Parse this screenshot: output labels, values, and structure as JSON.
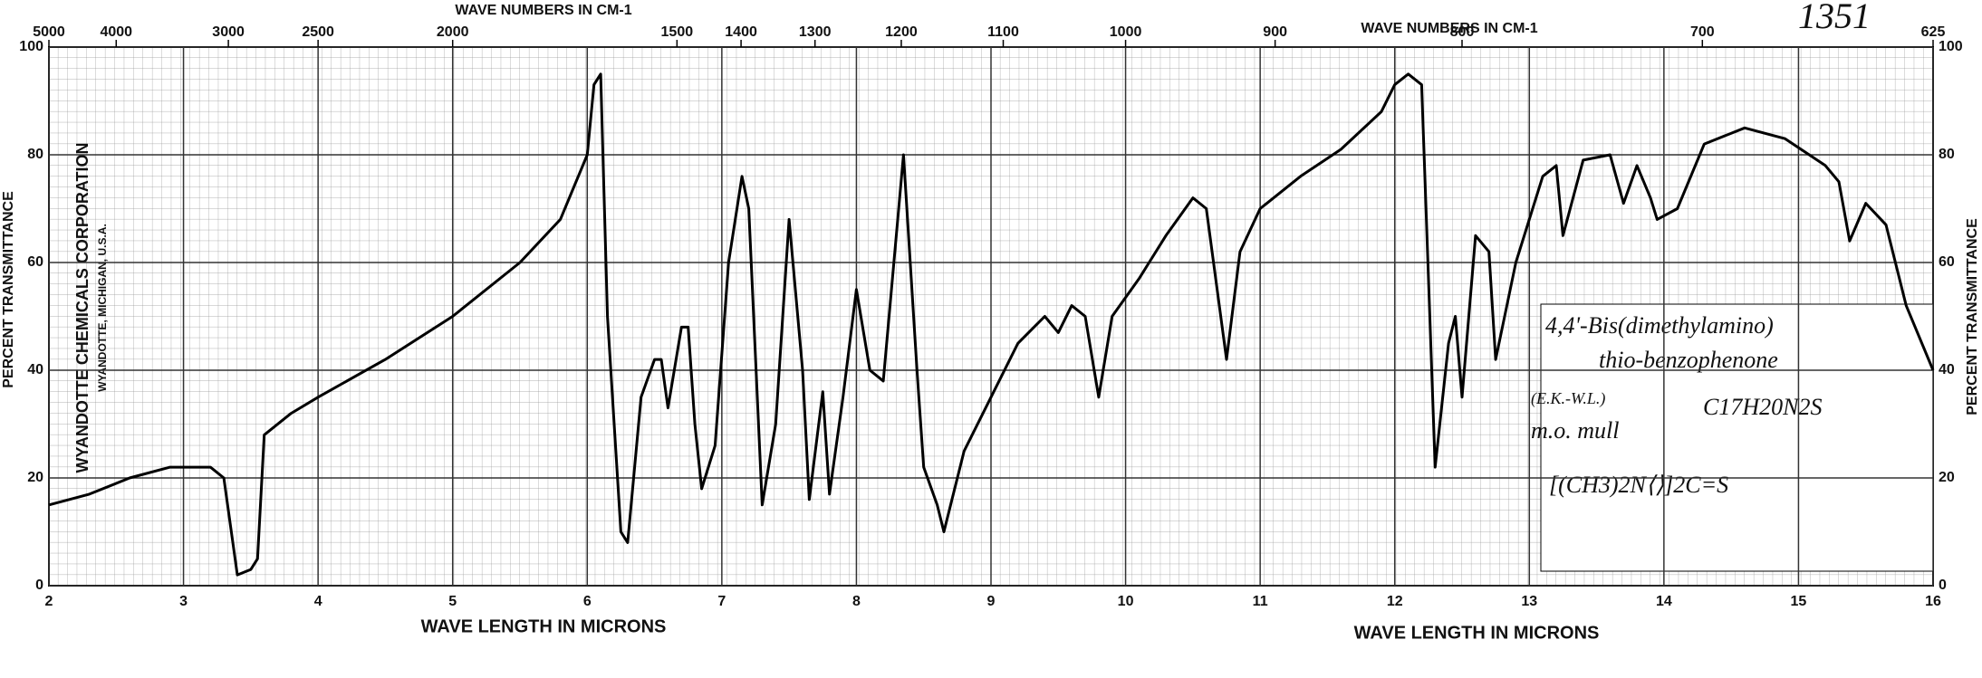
{
  "chart_data": {
    "type": "line",
    "chart_id": "1351",
    "x_label": "WAVE LENGTH IN MICRONS",
    "x2_label": "WAVE NUMBERS IN CM-1",
    "y_label": "PERCENT TRANSMITTANCE",
    "publisher": "WYANDOTTE CHEMICALS CORPORATION",
    "publisher_place": "WYANDOTTE, MICHIGAN, U.S.A.",
    "annotations": [
      "4,4'-Bis(dimethylamino)",
      "thio-benzophenone",
      "(E.K.-W.L.)",
      "m.o. mull",
      "C17H20N2S",
      "[(CH3)2N⟨⟩]2C=S"
    ],
    "color": "#000000",
    "grid": true,
    "x": [
      2.0,
      2.3,
      2.6,
      2.9,
      3.0,
      3.2,
      3.3,
      3.4,
      3.5,
      3.55,
      3.6,
      3.8,
      4.0,
      4.5,
      5.0,
      5.5,
      5.8,
      6.0,
      6.05,
      6.1,
      6.15,
      6.25,
      6.3,
      6.4,
      6.5,
      6.55,
      6.6,
      6.7,
      6.75,
      6.8,
      6.85,
      6.95,
      7.05,
      7.15,
      7.2,
      7.3,
      7.4,
      7.5,
      7.6,
      7.65,
      7.75,
      7.8,
      7.9,
      8.0,
      8.1,
      8.2,
      8.35,
      8.45,
      8.5,
      8.6,
      8.65,
      8.8,
      9.0,
      9.2,
      9.4,
      9.5,
      9.6,
      9.7,
      9.8,
      9.9,
      10.1,
      10.3,
      10.5,
      10.6,
      10.75,
      10.85,
      11.0,
      11.3,
      11.6,
      11.9,
      12.0,
      12.1,
      12.2,
      12.3,
      12.4,
      12.45,
      12.5,
      12.6,
      12.7,
      12.75,
      12.9,
      13.1,
      13.2,
      13.25,
      13.4,
      13.6,
      13.7,
      13.8,
      13.9,
      13.95,
      14.1,
      14.3,
      14.6,
      14.9,
      15.2,
      15.3,
      15.38,
      15.5,
      15.65,
      15.8,
      16.0
    ],
    "values": [
      15,
      17,
      20,
      22,
      22,
      22,
      20,
      2,
      3,
      5,
      28,
      32,
      35,
      42,
      50,
      60,
      68,
      80,
      93,
      95,
      50,
      10,
      8,
      35,
      42,
      42,
      33,
      48,
      48,
      30,
      18,
      26,
      60,
      76,
      70,
      15,
      30,
      68,
      40,
      16,
      36,
      17,
      35,
      55,
      40,
      38,
      80,
      40,
      22,
      15,
      10,
      25,
      35,
      45,
      50,
      47,
      52,
      50,
      35,
      50,
      57,
      65,
      72,
      70,
      42,
      62,
      70,
      76,
      81,
      88,
      93,
      95,
      93,
      22,
      45,
      50,
      35,
      65,
      62,
      42,
      60,
      76,
      78,
      65,
      79,
      80,
      71,
      78,
      72,
      68,
      70,
      82,
      85,
      83,
      78,
      75,
      64,
      71,
      67,
      52,
      40
    ],
    "xlim": [
      2,
      16
    ],
    "xticks": [
      2,
      3,
      4,
      5,
      6,
      7,
      8,
      9,
      10,
      11,
      12,
      13,
      14,
      15,
      16
    ],
    "x2ticks": [
      5000,
      4000,
      3000,
      2500,
      2000,
      1500,
      1400,
      1300,
      1200,
      1100,
      1000,
      900,
      800,
      700,
      625
    ],
    "ylim": [
      0,
      100
    ],
    "yticks": [
      0,
      20,
      40,
      60,
      80,
      100
    ]
  }
}
